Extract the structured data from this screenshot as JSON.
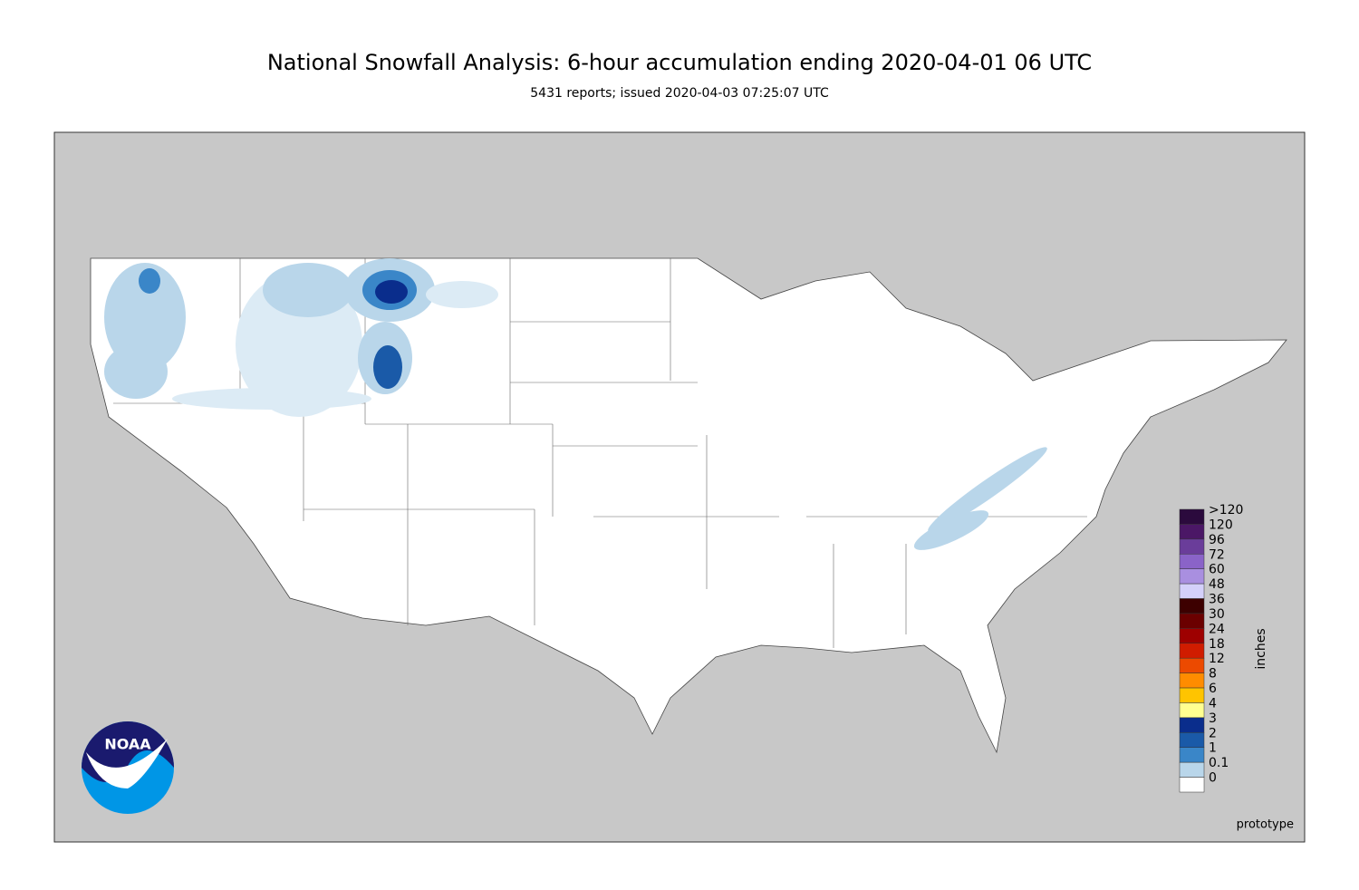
{
  "header": {
    "title": "National Snowfall Analysis: 6-hour accumulation ending 2020-04-01 06 UTC",
    "subtitle": "5431 reports; issued 2020-04-03 07:25:07 UTC"
  },
  "legend": {
    "unit": "inches",
    "items": [
      {
        "label": ">120",
        "color": "#2b0a3d"
      },
      {
        "label": "120",
        "color": "#4b1766"
      },
      {
        "label": "96",
        "color": "#6a3d9a"
      },
      {
        "label": "72",
        "color": "#8a63c8"
      },
      {
        "label": "60",
        "color": "#a98fe0"
      },
      {
        "label": "48",
        "color": "#d4d0fa"
      },
      {
        "label": "36",
        "color": "#3d0000"
      },
      {
        "label": "30",
        "color": "#6b0000"
      },
      {
        "label": "24",
        "color": "#9e0000"
      },
      {
        "label": "18",
        "color": "#d01c00"
      },
      {
        "label": "12",
        "color": "#ec4a00"
      },
      {
        "label": "8",
        "color": "#ff8c00"
      },
      {
        "label": "6",
        "color": "#ffc400"
      },
      {
        "label": "4",
        "color": "#ffff90"
      },
      {
        "label": "3",
        "color": "#0a2d8c"
      },
      {
        "label": "2",
        "color": "#1a5aa8"
      },
      {
        "label": "1",
        "color": "#3a86c8"
      },
      {
        "label": "0.1",
        "color": "#b9d6ea"
      },
      {
        "label": "0",
        "color": "#ffffff"
      }
    ]
  },
  "footer_note": "prototype",
  "logo": "NOAA"
}
